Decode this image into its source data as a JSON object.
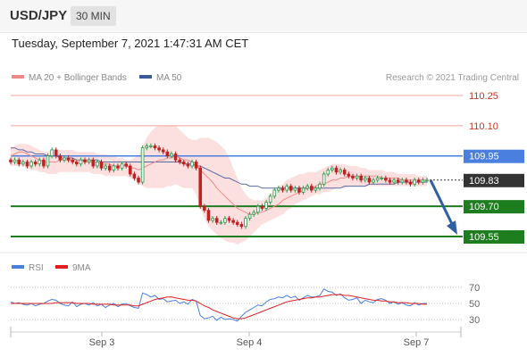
{
  "header": {
    "symbol": "USD/JPY",
    "timeframe": "30 MIN"
  },
  "datetime": "Tuesday, September 7, 2021 1:47:31 AM CET",
  "legend": {
    "ma20_bb": "MA 20 + Bollinger Bands",
    "ma50": "MA 50",
    "credit": "Research © 2021 Trading Central"
  },
  "rsi_legend": {
    "rsi": "RSI",
    "ma9": "9MA"
  },
  "colors": {
    "resistance_line": "#f0a0a0",
    "pivot_line": "#4a7fe0",
    "support_line": "#1e7d1e",
    "bb_fill": "#fbd6d6",
    "ma50": "#5a6aa0",
    "bull": "#2a9a4a",
    "bear": "#c02020",
    "arrow": "#2f5fa5"
  },
  "chart_data": [
    {
      "type": "candlestick",
      "title": "USD/JPY",
      "ylim": [
        109.48,
        110.3
      ],
      "x_ticks": [
        "Sep 3",
        "Sep 4",
        "Sep 7"
      ],
      "levels": [
        {
          "value": 110.25,
          "label": "110.25",
          "kind": "resistance"
        },
        {
          "value": 110.1,
          "label": "110.10",
          "kind": "resistance"
        },
        {
          "value": 109.95,
          "label": "109.95",
          "kind": "pivot"
        },
        {
          "value": 109.83,
          "label": "109.83",
          "kind": "last"
        },
        {
          "value": 109.7,
          "label": "109.70",
          "kind": "support"
        },
        {
          "value": 109.55,
          "label": "109.55",
          "kind": "support"
        }
      ],
      "close": [
        109.92,
        109.93,
        109.91,
        109.92,
        109.9,
        109.92,
        109.91,
        109.93,
        109.9,
        109.95,
        109.98,
        109.95,
        109.93,
        109.94,
        109.93,
        109.92,
        109.91,
        109.93,
        109.92,
        109.93,
        109.9,
        109.92,
        109.89,
        109.9,
        109.88,
        109.9,
        109.89,
        109.91,
        109.9,
        109.86,
        109.84,
        109.82,
        109.99,
        110.0,
        110.0,
        109.99,
        109.98,
        109.97,
        109.95,
        109.96,
        109.93,
        109.92,
        109.91,
        109.9,
        109.92,
        109.89,
        109.7,
        109.68,
        109.63,
        109.64,
        109.62,
        109.62,
        109.64,
        109.63,
        109.62,
        109.61,
        109.6,
        109.64,
        109.66,
        109.67,
        109.7,
        109.69,
        109.72,
        109.75,
        109.78,
        109.79,
        109.78,
        109.8,
        109.78,
        109.79,
        109.77,
        109.79,
        109.8,
        109.78,
        109.79,
        109.81,
        109.86,
        109.88,
        109.89,
        109.87,
        109.88,
        109.86,
        109.85,
        109.84,
        109.85,
        109.83,
        109.84,
        109.82,
        109.83,
        109.84,
        109.84,
        109.83,
        109.82,
        109.83,
        109.82,
        109.83,
        109.82,
        109.81,
        109.83,
        109.82,
        109.83,
        109.83
      ],
      "ma20": [
        109.95,
        109.96,
        109.97,
        109.97,
        109.96,
        109.95,
        109.94,
        109.93,
        109.92,
        109.92,
        109.92,
        109.92,
        109.93,
        109.93,
        109.93,
        109.93,
        109.93,
        109.93,
        109.92,
        109.92,
        109.92,
        109.92,
        109.91,
        109.91,
        109.91,
        109.9,
        109.9,
        109.9,
        109.9,
        109.89,
        109.89,
        109.88,
        109.89,
        109.9,
        109.91,
        109.92,
        109.93,
        109.93,
        109.94,
        109.94,
        109.95,
        109.94,
        109.93,
        109.93,
        109.92,
        109.91,
        109.88,
        109.86,
        109.84,
        109.82,
        109.79,
        109.77,
        109.75,
        109.73,
        109.71,
        109.69,
        109.68,
        109.67,
        109.66,
        109.66,
        109.67,
        109.67,
        109.68,
        109.69,
        109.7,
        109.71,
        109.73,
        109.74,
        109.75,
        109.76,
        109.77,
        109.78,
        109.79,
        109.79,
        109.8,
        109.81,
        109.81,
        109.82,
        109.83,
        109.83,
        109.84,
        109.84,
        109.85,
        109.85,
        109.85,
        109.85,
        109.85,
        109.85,
        109.85,
        109.85,
        109.84,
        109.84,
        109.84,
        109.84,
        109.84,
        109.83,
        109.83,
        109.83,
        109.83,
        109.83,
        109.83,
        109.83
      ],
      "ma50": [
        109.99,
        109.99,
        109.98,
        109.98,
        109.97,
        109.97,
        109.96,
        109.96,
        109.96,
        109.95,
        109.95,
        109.95,
        109.94,
        109.94,
        109.94,
        109.94,
        109.93,
        109.93,
        109.93,
        109.93,
        109.93,
        109.93,
        109.92,
        109.92,
        109.92,
        109.92,
        109.92,
        109.92,
        109.92,
        109.92,
        109.92,
        109.92,
        109.92,
        109.92,
        109.92,
        109.92,
        109.92,
        109.92,
        109.92,
        109.92,
        109.92,
        109.92,
        109.91,
        109.91,
        109.91,
        109.9,
        109.9,
        109.89,
        109.88,
        109.87,
        109.86,
        109.85,
        109.84,
        109.84,
        109.83,
        109.82,
        109.81,
        109.81,
        109.8,
        109.8,
        109.8,
        109.79,
        109.79,
        109.79,
        109.79,
        109.79,
        109.79,
        109.79,
        109.79,
        109.79,
        109.79,
        109.79,
        109.79,
        109.79,
        109.79,
        109.79,
        109.79,
        109.79,
        109.79,
        109.79,
        109.79,
        109.8,
        109.8,
        109.8,
        109.8,
        109.8,
        109.8,
        109.81,
        109.81,
        109.81,
        109.81,
        109.81,
        109.81,
        109.81,
        109.82,
        109.82,
        109.82,
        109.82,
        109.82,
        109.82,
        109.82,
        109.82
      ],
      "bb_upper": [
        109.99,
        110.0,
        110.01,
        110.01,
        110.01,
        110.0,
        109.99,
        109.98,
        109.97,
        109.97,
        109.98,
        109.98,
        109.98,
        109.98,
        109.98,
        109.98,
        109.97,
        109.97,
        109.97,
        109.97,
        109.97,
        109.96,
        109.96,
        109.96,
        109.95,
        109.95,
        109.94,
        109.94,
        109.93,
        109.93,
        109.94,
        109.95,
        110.0,
        110.04,
        110.07,
        110.09,
        110.1,
        110.1,
        110.1,
        110.1,
        110.1,
        110.08,
        110.06,
        110.04,
        110.03,
        110.03,
        110.04,
        110.04,
        110.04,
        110.03,
        110.02,
        110.0,
        109.98,
        109.94,
        109.89,
        109.84,
        109.79,
        109.76,
        109.74,
        109.73,
        109.73,
        109.73,
        109.74,
        109.76,
        109.78,
        109.8,
        109.81,
        109.83,
        109.84,
        109.85,
        109.86,
        109.86,
        109.87,
        109.87,
        109.87,
        109.88,
        109.89,
        109.9,
        109.91,
        109.91,
        109.91,
        109.91,
        109.9,
        109.9,
        109.9,
        109.89,
        109.89,
        109.88,
        109.88,
        109.88,
        109.88,
        109.87,
        109.87,
        109.87,
        109.86,
        109.86,
        109.86,
        109.86,
        109.86,
        109.85,
        109.85,
        109.85
      ],
      "bb_lower": [
        109.9,
        109.9,
        109.9,
        109.9,
        109.89,
        109.88,
        109.88,
        109.87,
        109.87,
        109.86,
        109.86,
        109.86,
        109.87,
        109.87,
        109.87,
        109.87,
        109.87,
        109.87,
        109.87,
        109.87,
        109.86,
        109.86,
        109.86,
        109.85,
        109.85,
        109.85,
        109.85,
        109.85,
        109.85,
        109.84,
        109.83,
        109.82,
        109.8,
        109.79,
        109.79,
        109.79,
        109.79,
        109.79,
        109.8,
        109.8,
        109.81,
        109.8,
        109.79,
        109.79,
        109.79,
        109.76,
        109.69,
        109.64,
        109.6,
        109.58,
        109.56,
        109.54,
        109.53,
        109.52,
        109.52,
        109.51,
        109.52,
        109.53,
        109.55,
        109.57,
        109.59,
        109.61,
        109.62,
        109.63,
        109.64,
        109.65,
        109.66,
        109.68,
        109.69,
        109.71,
        109.72,
        109.73,
        109.74,
        109.75,
        109.76,
        109.76,
        109.77,
        109.77,
        109.78,
        109.79,
        109.79,
        109.79,
        109.8,
        109.8,
        109.8,
        109.8,
        109.8,
        109.8,
        109.8,
        109.8,
        109.8,
        109.8,
        109.8,
        109.8,
        109.8,
        109.8,
        109.8,
        109.8,
        109.8,
        109.8,
        109.8,
        109.8
      ],
      "projection": {
        "from": 109.83,
        "to": 109.55
      }
    },
    {
      "type": "line",
      "title": "RSI",
      "ylim": [
        20,
        80
      ],
      "y_ticks": [
        70,
        50,
        30
      ],
      "series": [
        {
          "name": "RSI",
          "color": "#4a7fe0",
          "values": [
            52,
            50,
            51,
            49,
            48,
            50,
            47,
            49,
            50,
            53,
            55,
            54,
            50,
            48,
            47,
            52,
            46,
            49,
            50,
            48,
            51,
            47,
            49,
            45,
            48,
            50,
            46,
            49,
            50,
            47,
            45,
            44,
            63,
            61,
            58,
            60,
            55,
            56,
            52,
            53,
            54,
            50,
            52,
            49,
            55,
            53,
            35,
            31,
            32,
            34,
            29,
            33,
            30,
            31,
            30,
            28,
            34,
            39,
            42,
            45,
            48,
            47,
            52,
            55,
            56,
            58,
            57,
            60,
            57,
            59,
            54,
            57,
            60,
            58,
            58,
            60,
            68,
            65,
            64,
            60,
            62,
            57,
            54,
            55,
            57,
            50,
            54,
            52,
            51,
            55,
            56,
            54,
            50,
            52,
            49,
            51,
            48,
            47,
            51,
            48,
            50,
            50
          ]
        },
        {
          "name": "9MA",
          "color": "#e02020",
          "values": [
            50,
            50,
            50,
            50,
            50,
            50,
            50,
            50,
            50,
            50,
            50,
            51,
            51,
            51,
            51,
            51,
            50,
            50,
            50,
            50,
            49,
            49,
            49,
            49,
            49,
            48,
            48,
            48,
            48,
            48,
            47,
            47,
            49,
            51,
            53,
            55,
            56,
            57,
            58,
            58,
            57,
            56,
            55,
            54,
            54,
            53,
            50,
            47,
            45,
            42,
            40,
            38,
            36,
            34,
            32,
            31,
            31,
            32,
            34,
            36,
            38,
            40,
            42,
            44,
            46,
            48,
            50,
            52,
            53,
            54,
            55,
            56,
            57,
            57,
            58,
            58,
            59,
            60,
            61,
            61,
            61,
            60,
            60,
            59,
            58,
            57,
            56,
            55,
            54,
            54,
            53,
            53,
            52,
            52,
            51,
            51,
            51,
            50,
            50,
            50,
            49,
            49
          ]
        }
      ]
    }
  ]
}
